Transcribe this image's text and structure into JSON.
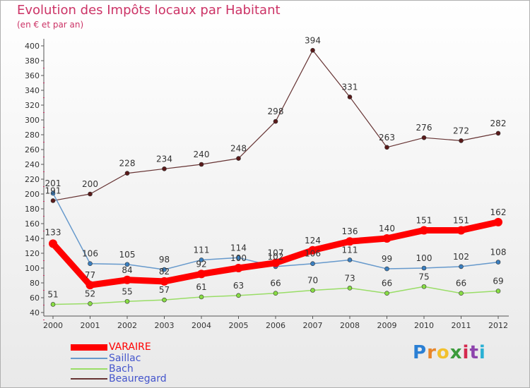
{
  "title": "Evolution des Impôts locaux par Habitant",
  "subtitle": "(en € et par an)",
  "brand": {
    "letters": [
      "P",
      "r",
      "o",
      "x",
      "i",
      "t",
      "i"
    ],
    "colors": [
      "#2a7fd4",
      "#e8862a",
      "#f2c12e",
      "#3c9b3c",
      "#d42a4f",
      "#8e44ad",
      "#2ab0d4"
    ]
  },
  "chart_data": {
    "type": "line",
    "categories": [
      "2000",
      "2001",
      "2002",
      "2003",
      "2004",
      "2005",
      "2006",
      "2007",
      "2008",
      "2009",
      "2010",
      "2011",
      "2012"
    ],
    "yticks": [
      "40",
      "60",
      "80",
      "100",
      "120",
      "140",
      "160",
      "180",
      "200",
      "220",
      "240",
      "260",
      "280",
      "300",
      "320",
      "340",
      "360",
      "380",
      "400"
    ],
    "ylim": [
      40,
      400
    ],
    "grid": false,
    "legend_position": "bottom-left",
    "series": [
      {
        "name": "VARAIRE",
        "color": "#ff0000",
        "values": [
          133,
          77,
          84,
          82,
          92,
          100,
          107,
          124,
          136,
          140,
          151,
          151,
          162
        ],
        "labels": [
          "133",
          "77",
          "84",
          "82",
          "92",
          "100",
          "107",
          "124",
          "136",
          "140",
          "151",
          "151",
          "162"
        ]
      },
      {
        "name": "Saillac",
        "color": "#6699cc",
        "values": [
          201,
          106,
          105,
          98,
          111,
          114,
          102,
          106,
          111,
          99,
          100,
          102,
          108
        ],
        "labels": [
          "201",
          "106",
          "105",
          "98",
          "111",
          "114",
          "102",
          "106",
          "111",
          "99",
          "100",
          "102",
          "108"
        ]
      },
      {
        "name": "Bach",
        "color": "#99dd66",
        "values": [
          51,
          52,
          55,
          57,
          61,
          63,
          66,
          70,
          73,
          66,
          75,
          66,
          69
        ],
        "labels": [
          "51",
          "52",
          "55",
          "57",
          "61",
          "63",
          "66",
          "70",
          "73",
          "66",
          "75",
          "66",
          "69"
        ]
      },
      {
        "name": "Beauregard",
        "color": "#663333",
        "values": [
          191,
          200,
          228,
          234,
          240,
          248,
          298,
          394,
          331,
          263,
          276,
          272,
          282
        ],
        "labels": [
          "191",
          "200",
          "228",
          "234",
          "240",
          "248",
          "298",
          "394",
          "331",
          "263",
          "276",
          "272",
          "282"
        ]
      }
    ]
  }
}
